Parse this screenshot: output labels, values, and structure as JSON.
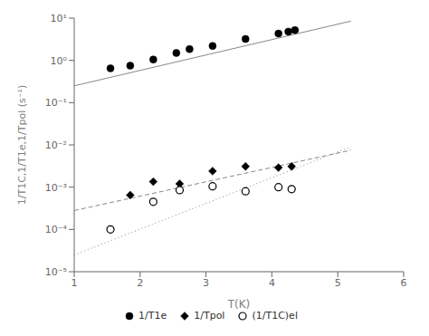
{
  "chart_data": {
    "type": "scatter",
    "title": "",
    "x_label": "T(K)",
    "y_label": "1/T1C,1/T1e,1/Tpol (s⁻¹)",
    "log": "y",
    "grid": false,
    "legend": "bottom",
    "xlim": [
      1,
      6
    ],
    "xticks": [
      1,
      2,
      3,
      4,
      5,
      6
    ],
    "ylim": [
      1e-05,
      10
    ],
    "yticks": [
      {
        "value": 1e-05,
        "label": "10⁻⁵"
      },
      {
        "value": 0.0001,
        "label": "10⁻⁴"
      },
      {
        "value": 0.001,
        "label": "10⁻³"
      },
      {
        "value": 0.01,
        "label": "10⁻²"
      },
      {
        "value": 0.1,
        "label": "10⁻¹"
      },
      {
        "value": 1,
        "label": "10⁰"
      },
      {
        "value": 10,
        "label": "10¹"
      }
    ],
    "series": [
      {
        "type": "line",
        "color": "#888888",
        "line_style": "solid",
        "x": [
          1.0,
          5.2
        ],
        "y": [
          0.25,
          8.5
        ]
      },
      {
        "type": "line",
        "color": "#888888",
        "line_style": "dashed",
        "x": [
          1.0,
          5.2
        ],
        "y": [
          0.00028,
          0.0075
        ]
      },
      {
        "type": "line",
        "color": "#888888",
        "line_style": "dotted",
        "x": [
          1.0,
          5.2
        ],
        "y": [
          2.5e-05,
          0.009
        ]
      },
      {
        "type": "scatter",
        "name": "1/T1e",
        "color": "black",
        "marker": "circle",
        "x": [
          1.55,
          1.85,
          2.2,
          2.55,
          2.75,
          3.1,
          3.6,
          4.1,
          4.25,
          4.35
        ],
        "y": [
          0.65,
          0.75,
          1.05,
          1.5,
          1.85,
          2.2,
          3.2,
          4.3,
          4.8,
          5.2
        ]
      },
      {
        "type": "scatter",
        "name": "1/Tpol",
        "color": "black",
        "marker": "diamond",
        "x": [
          1.85,
          2.2,
          2.6,
          3.1,
          3.6,
          4.1,
          4.3
        ],
        "y": [
          0.00065,
          0.00135,
          0.0012,
          0.0024,
          0.0031,
          0.0029,
          0.0031
        ]
      },
      {
        "type": "scatter",
        "name": "(1/T1C)el",
        "color": "black",
        "marker": "open_circle",
        "x": [
          1.55,
          2.2,
          2.6,
          3.1,
          3.6,
          4.1,
          4.3
        ],
        "y": [
          0.0001,
          0.00045,
          0.00085,
          0.00105,
          0.0008,
          0.001,
          0.0009
        ]
      }
    ]
  }
}
